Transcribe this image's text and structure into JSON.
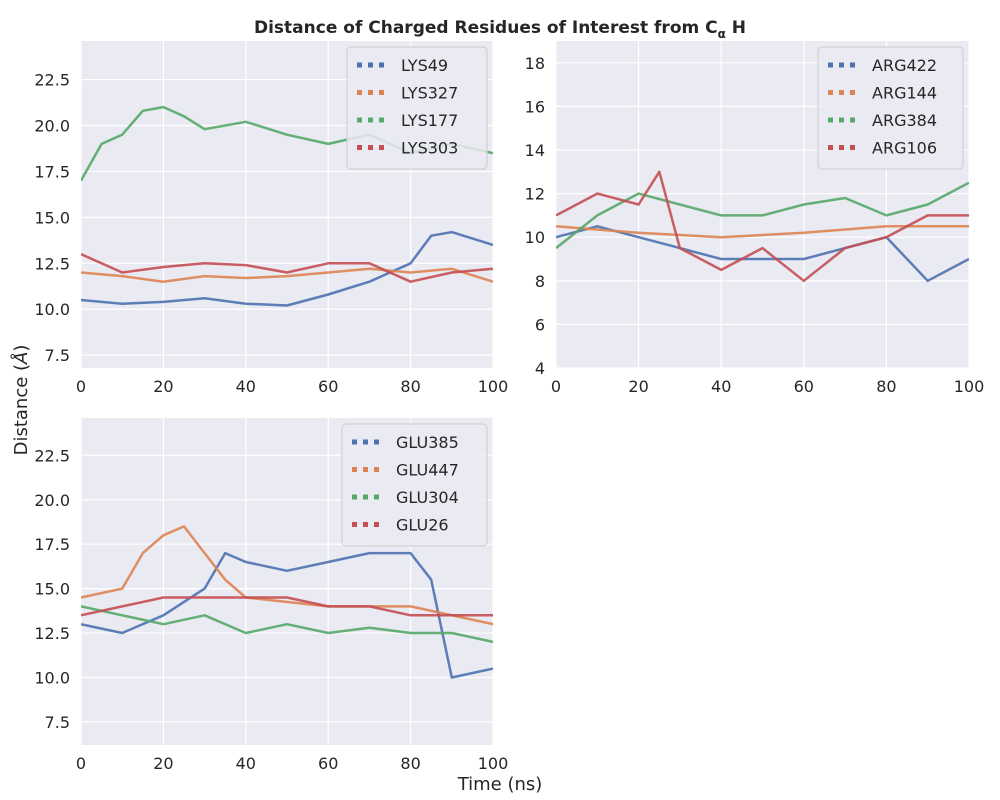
{
  "figure": {
    "title": "Distance of Charged Residues of Interest from C",
    "title_sub": "α",
    "title_tail": " H",
    "ylabel": "Distance (",
    "ylabel_unit": "Å",
    "ylabel_tail": ")",
    "xlabel": "Time (ns)",
    "background": "#eaeaf2",
    "grid_color": "#ffffff"
  },
  "chart_data": [
    {
      "type": "line",
      "panel": "top-left",
      "xlim": [
        0,
        100
      ],
      "ylim": [
        6.8,
        24.6
      ],
      "xticks": [
        0,
        20,
        40,
        60,
        80,
        100
      ],
      "yticks": [
        7.5,
        10.0,
        12.5,
        15.0,
        17.5,
        20.0,
        22.5
      ],
      "ytick_labels": [
        "7.5",
        "10.0",
        "12.5",
        "15.0",
        "17.5",
        "20.0",
        "22.5"
      ],
      "grid": true,
      "legend_position": "top-right",
      "series": [
        {
          "name": "LYS49",
          "color": "#4c72b0",
          "x": [
            0,
            10,
            20,
            30,
            40,
            50,
            60,
            70,
            80,
            85,
            90,
            100
          ],
          "y": [
            10.5,
            10.3,
            10.4,
            10.6,
            10.3,
            10.2,
            10.8,
            11.5,
            12.5,
            14.0,
            14.2,
            13.5
          ]
        },
        {
          "name": "LYS327",
          "color": "#dd8452",
          "x": [
            0,
            10,
            20,
            30,
            40,
            50,
            60,
            70,
            80,
            90,
            100
          ],
          "y": [
            12.0,
            11.8,
            11.5,
            11.8,
            11.7,
            11.8,
            12.0,
            12.2,
            12.0,
            12.2,
            11.5
          ]
        },
        {
          "name": "LYS177",
          "color": "#55a868",
          "x": [
            0,
            5,
            10,
            15,
            20,
            25,
            30,
            40,
            50,
            60,
            70,
            80,
            90,
            100
          ],
          "y": [
            17.0,
            19.0,
            19.5,
            20.8,
            21.0,
            20.5,
            19.8,
            20.2,
            19.5,
            19.0,
            19.5,
            18.5,
            19.0,
            18.5
          ]
        },
        {
          "name": "LYS303",
          "color": "#c44e52",
          "x": [
            0,
            10,
            20,
            30,
            40,
            50,
            60,
            70,
            80,
            90,
            100
          ],
          "y": [
            13.0,
            12.0,
            12.3,
            12.5,
            12.4,
            12.0,
            12.5,
            12.5,
            11.5,
            12.0,
            12.2
          ]
        }
      ]
    },
    {
      "type": "line",
      "panel": "top-right",
      "xlim": [
        0,
        100
      ],
      "ylim": [
        4,
        19
      ],
      "xticks": [
        0,
        20,
        40,
        60,
        80,
        100
      ],
      "yticks": [
        4,
        6,
        8,
        10,
        12,
        14,
        16,
        18
      ],
      "ytick_labels": [
        "4",
        "6",
        "8",
        "10",
        "12",
        "14",
        "16",
        "18"
      ],
      "grid": true,
      "legend_position": "top-right",
      "series": [
        {
          "name": "ARG422",
          "color": "#4c72b0",
          "x": [
            0,
            10,
            20,
            30,
            40,
            50,
            60,
            70,
            80,
            90,
            100
          ],
          "y": [
            10.0,
            10.5,
            10.0,
            9.5,
            9.0,
            9.0,
            9.0,
            9.5,
            10.0,
            8.0,
            9.0
          ]
        },
        {
          "name": "ARG144",
          "color": "#dd8452",
          "x": [
            0,
            20,
            40,
            60,
            80,
            100
          ],
          "y": [
            10.5,
            10.2,
            10.0,
            10.2,
            10.5,
            10.5
          ]
        },
        {
          "name": "ARG384",
          "color": "#55a868",
          "x": [
            0,
            10,
            20,
            30,
            40,
            50,
            60,
            70,
            80,
            90,
            100
          ],
          "y": [
            9.5,
            11.0,
            12.0,
            11.5,
            11.0,
            11.0,
            11.5,
            11.8,
            11.0,
            11.5,
            12.5
          ]
        },
        {
          "name": "ARG106",
          "color": "#c44e52",
          "x": [
            0,
            10,
            20,
            25,
            30,
            40,
            50,
            60,
            70,
            80,
            90,
            100
          ],
          "y": [
            11.0,
            12.0,
            11.5,
            13.0,
            9.5,
            8.5,
            9.5,
            8.0,
            9.5,
            10.0,
            11.0,
            11.0
          ]
        }
      ]
    },
    {
      "type": "line",
      "panel": "bottom-left",
      "xlim": [
        0,
        100
      ],
      "ylim": [
        6.2,
        24.6
      ],
      "xticks": [
        0,
        20,
        40,
        60,
        80,
        100
      ],
      "yticks": [
        7.5,
        10.0,
        12.5,
        15.0,
        17.5,
        20.0,
        22.5
      ],
      "ytick_labels": [
        "7.5",
        "10.0",
        "12.5",
        "15.0",
        "17.5",
        "20.0",
        "22.5"
      ],
      "grid": true,
      "legend_position": "top-right",
      "series": [
        {
          "name": "GLU385",
          "color": "#4c72b0",
          "x": [
            0,
            10,
            20,
            30,
            35,
            40,
            50,
            60,
            70,
            80,
            85,
            90,
            100
          ],
          "y": [
            13.0,
            12.5,
            13.5,
            15.0,
            17.0,
            16.5,
            16.0,
            16.5,
            17.0,
            17.0,
            15.5,
            10.0,
            10.5
          ]
        },
        {
          "name": "GLU447",
          "color": "#dd8452",
          "x": [
            0,
            10,
            15,
            20,
            25,
            30,
            35,
            40,
            60,
            80,
            100
          ],
          "y": [
            14.5,
            15.0,
            17.0,
            18.0,
            18.5,
            17.0,
            15.5,
            14.5,
            14.0,
            14.0,
            13.0
          ]
        },
        {
          "name": "GLU304",
          "color": "#55a868",
          "x": [
            0,
            10,
            20,
            30,
            40,
            50,
            60,
            70,
            80,
            90,
            100
          ],
          "y": [
            14.0,
            13.5,
            13.0,
            13.5,
            12.5,
            13.0,
            12.5,
            12.8,
            12.5,
            12.5,
            12.0
          ]
        },
        {
          "name": "GLU26",
          "color": "#c44e52",
          "x": [
            0,
            10,
            20,
            30,
            40,
            50,
            60,
            70,
            80,
            90,
            100
          ],
          "y": [
            13.5,
            14.0,
            14.5,
            14.5,
            14.5,
            14.5,
            14.0,
            14.0,
            13.5,
            13.5,
            13.5
          ]
        }
      ]
    }
  ]
}
